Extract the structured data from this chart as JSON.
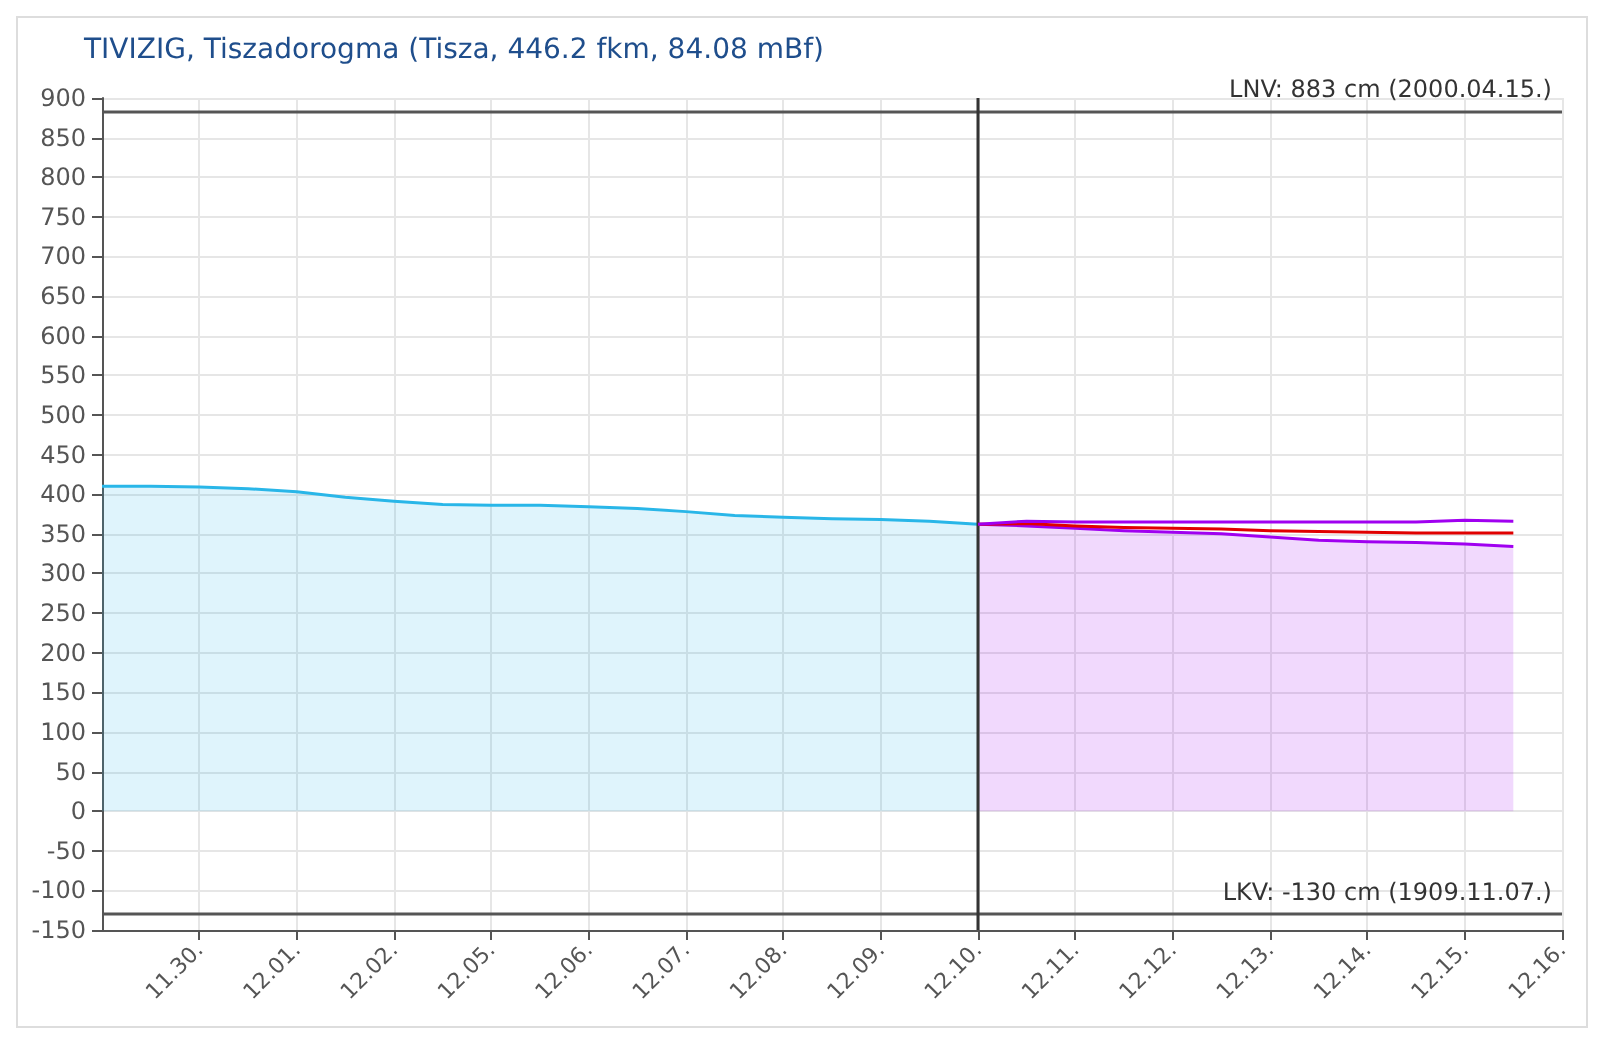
{
  "chart_data": {
    "type": "line",
    "title": "TIVIZIG, Tiszadorogma (Tisza, 446.2 fkm, 84.08 mBf)",
    "categories": [
      null,
      null,
      "11.30.",
      null,
      "12.01.",
      null,
      "12.02.",
      null,
      "12.05.",
      null,
      "12.06.",
      null,
      "12.07.",
      null,
      "12.08.",
      null,
      "12.09.",
      null,
      "12.10.",
      null,
      "12.11.",
      null,
      "12.12.",
      null,
      "12.13.",
      null,
      "12.14.",
      null,
      "12.15.",
      null,
      "12.16."
    ],
    "series": [
      {
        "type": "area",
        "color": "#29b6e8",
        "values": [
          410,
          410,
          409,
          407,
          403,
          396,
          391,
          387,
          386,
          386,
          384,
          382,
          378,
          373,
          371,
          369,
          368,
          366,
          362,
          null,
          null,
          null,
          null,
          null,
          null,
          null,
          null,
          null,
          null,
          null,
          null
        ]
      },
      {
        "type": "area",
        "color": "#a000f0",
        "values": [
          null,
          null,
          null,
          null,
          null,
          null,
          null,
          null,
          null,
          null,
          null,
          null,
          null,
          null,
          null,
          null,
          null,
          null,
          362,
          360,
          357,
          354,
          352,
          350,
          346,
          342,
          340,
          339,
          337,
          334,
          null
        ]
      },
      {
        "color": "#e00000",
        "values": [
          null,
          null,
          null,
          null,
          null,
          null,
          null,
          null,
          null,
          null,
          null,
          null,
          null,
          null,
          null,
          null,
          null,
          null,
          362,
          363,
          360,
          358,
          357,
          356,
          354,
          353,
          352,
          351,
          351,
          351,
          null
        ]
      },
      {
        "color": "#a000f0",
        "values": [
          null,
          null,
          null,
          null,
          null,
          null,
          null,
          null,
          null,
          null,
          null,
          null,
          null,
          null,
          null,
          null,
          null,
          null,
          362,
          366,
          365,
          365,
          365,
          365,
          365,
          365,
          365,
          365,
          367,
          366,
          null
        ]
      }
    ],
    "ylim": [
      -150,
      900
    ],
    "yticks": [
      -150,
      -100,
      -50,
      0,
      50,
      100,
      150,
      200,
      250,
      300,
      350,
      400,
      450,
      500,
      550,
      600,
      650,
      700,
      750,
      800,
      850,
      900
    ],
    "ref_lines": [
      {
        "axis": "y",
        "value": 883,
        "label": "LNV: 883 cm (2000.04.15.)",
        "color": "#555555"
      },
      {
        "axis": "y",
        "value": -130,
        "label": "LKV: -130 cm (1909.11.07.)",
        "color": "#555555"
      },
      {
        "axis": "x",
        "value": "12.10.",
        "color": "#333333"
      }
    ],
    "grid": true,
    "marker": "none",
    "line_style": "solid"
  }
}
